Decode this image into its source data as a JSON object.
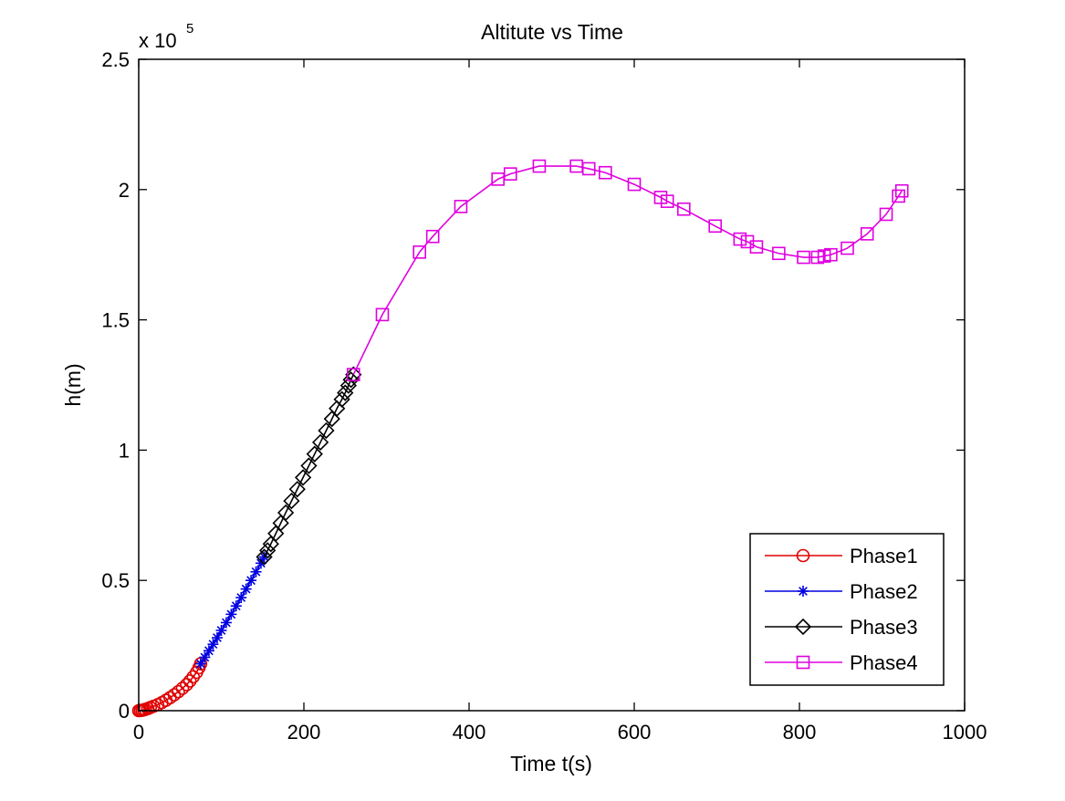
{
  "chart_data": {
    "type": "line",
    "title": "Altitute vs Time",
    "xlabel": "Time t(s)",
    "ylabel": "h(m)",
    "exponent_base": "x 10",
    "exponent_power": "5",
    "xlim": [
      0,
      1000
    ],
    "ylim": [
      0,
      250000
    ],
    "y_display_scale": 100000,
    "xticks": [
      0,
      200,
      400,
      600,
      800,
      1000
    ],
    "xtick_labels": [
      "0",
      "200",
      "400",
      "600",
      "800",
      "1000"
    ],
    "yticks": [
      0,
      50000,
      100000,
      150000,
      200000,
      250000
    ],
    "ytick_labels": [
      "0",
      "0.5",
      "1",
      "1.5",
      "2",
      "2.5"
    ],
    "grid": false,
    "legend_position": "bottom-right",
    "series": [
      {
        "name": "Phase1",
        "color": "#e00000",
        "marker": "circle",
        "x": [
          0,
          2,
          4,
          6,
          8,
          11,
          14,
          18,
          23,
          28,
          33,
          38,
          43,
          48,
          53,
          58,
          62,
          66,
          70,
          73,
          75
        ],
        "y": [
          0,
          50,
          150,
          300,
          500,
          800,
          1200,
          1700,
          2300,
          3100,
          4000,
          5000,
          6100,
          7300,
          8600,
          10000,
          11400,
          13000,
          14700,
          16500,
          18000
        ]
      },
      {
        "name": "Phase2",
        "color": "#0000e0",
        "marker": "asterisk",
        "x": [
          75,
          80,
          85,
          90,
          95,
          100,
          106,
          112,
          118,
          124,
          130,
          136,
          142,
          148,
          152
        ],
        "y": [
          18000,
          20500,
          23000,
          25500,
          28000,
          30800,
          33800,
          37000,
          40200,
          43400,
          46700,
          50000,
          53300,
          56600,
          59000
        ]
      },
      {
        "name": "Phase3",
        "color": "#000000",
        "marker": "diamond",
        "x": [
          152,
          156,
          160,
          166,
          172,
          178,
          185,
          192,
          199,
          206,
          213,
          220,
          227,
          234,
          240,
          246,
          250,
          254,
          257,
          260
        ],
        "y": [
          59000,
          61500,
          64000,
          68000,
          72000,
          76000,
          80500,
          85000,
          89500,
          94000,
          98500,
          103000,
          107500,
          112000,
          116000,
          119500,
          122000,
          124800,
          127000,
          129000
        ]
      },
      {
        "name": "Phase4",
        "color": "#e000e0",
        "marker": "square",
        "x": [
          260,
          295,
          340,
          356,
          390,
          435,
          450,
          485,
          530,
          545,
          565,
          600,
          632,
          640,
          660,
          698,
          728,
          737,
          748,
          775,
          805,
          822,
          830,
          838,
          858,
          882,
          905,
          920,
          924
        ],
        "y": [
          129000,
          152000,
          176000,
          182000,
          193500,
          204000,
          206000,
          209000,
          209000,
          208000,
          206500,
          202000,
          197000,
          195500,
          192500,
          186000,
          181000,
          180000,
          178000,
          175500,
          174000,
          174000,
          174500,
          175000,
          177500,
          183000,
          190500,
          197500,
          199500
        ]
      }
    ]
  }
}
